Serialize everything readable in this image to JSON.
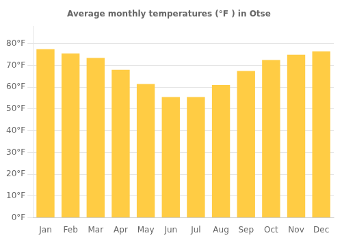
{
  "chart_data": {
    "type": "bar",
    "title": "Average monthly temperatures (°F ) in Otse",
    "categories": [
      "Jan",
      "Feb",
      "Mar",
      "Apr",
      "May",
      "Jun",
      "Jul",
      "Aug",
      "Sep",
      "Oct",
      "Nov",
      "Dec"
    ],
    "values": [
      77.5,
      75.5,
      73.5,
      68.0,
      61.5,
      55.5,
      55.5,
      61.0,
      67.5,
      72.5,
      75.0,
      76.5
    ],
    "color": "#FFCC44",
    "ylim": [
      0,
      88
    ],
    "yticks": [
      {
        "value": 0,
        "label": "0°F"
      },
      {
        "value": 10,
        "label": "10°F"
      },
      {
        "value": 20,
        "label": "20°F"
      },
      {
        "value": 30,
        "label": "30°F"
      },
      {
        "value": 40,
        "label": "40°F"
      },
      {
        "value": 50,
        "label": "50°F"
      },
      {
        "value": 60,
        "label": "60°F"
      },
      {
        "value": 70,
        "label": "70°F"
      },
      {
        "value": 80,
        "label": "80°F"
      }
    ],
    "grid": true
  }
}
